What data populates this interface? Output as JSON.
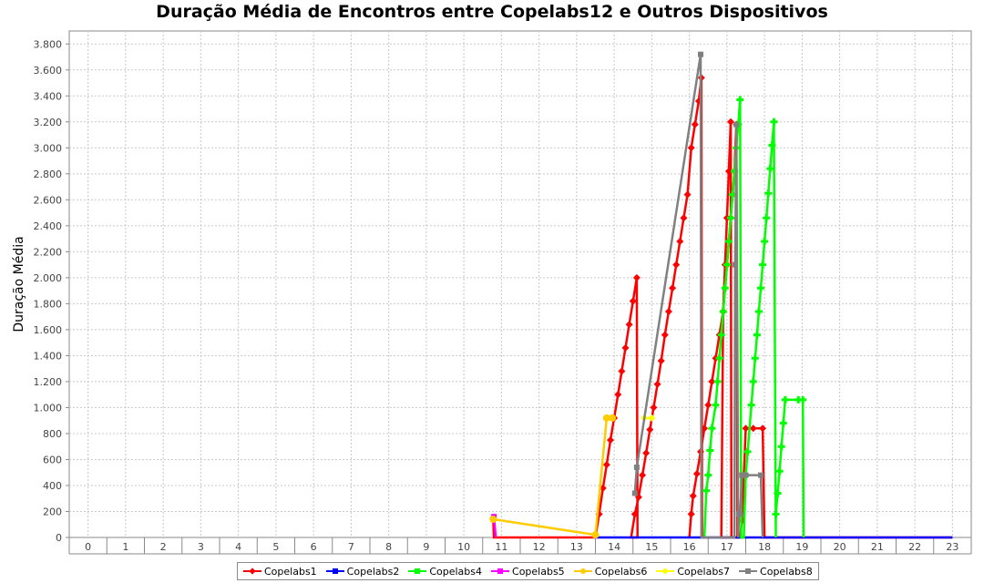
{
  "chart_data": {
    "type": "line",
    "title": "Duração Média de Encontros entre Copelabs12 e Outros Dispositivos",
    "ylabel": "Duração Média",
    "xlabel": "",
    "categories": [
      "0",
      "1",
      "2",
      "3",
      "4",
      "5",
      "6",
      "7",
      "8",
      "9",
      "10",
      "11",
      "12",
      "13",
      "14",
      "15",
      "16",
      "17",
      "18",
      "19",
      "20",
      "21",
      "22",
      "23"
    ],
    "ylim": [
      0,
      3900
    ],
    "yticks": [
      0,
      200,
      400,
      600,
      800,
      1000,
      1200,
      1400,
      1600,
      1800,
      2000,
      2200,
      2400,
      2600,
      2800,
      3000,
      3200,
      3400,
      3600,
      3800
    ],
    "ytick_labels": [
      "0",
      "200",
      "400",
      "600",
      "800",
      "1.000",
      "1.200",
      "1.400",
      "1.600",
      "1.800",
      "2.000",
      "2.200",
      "2.400",
      "2.600",
      "2.800",
      "3.000",
      "3.200",
      "3.400",
      "3.600",
      "3.800"
    ],
    "grid": true,
    "legend_position": "bottom",
    "series": [
      {
        "name": "Copelabs1",
        "color": "#ff0000",
        "marker": "diamond",
        "points": [
          [
            11.28,
            150
          ],
          [
            11.3,
            0
          ],
          [
            14.0,
            0
          ],
          [
            14.1,
            180
          ],
          [
            14.2,
            380
          ],
          [
            14.3,
            560
          ],
          [
            14.4,
            750
          ],
          [
            14.5,
            920
          ],
          [
            14.6,
            1100
          ],
          [
            14.7,
            1280
          ],
          [
            14.8,
            1460
          ],
          [
            14.9,
            1640
          ],
          [
            15.0,
            1820
          ],
          [
            15.1,
            2000
          ],
          [
            15.12,
            0
          ],
          [
            14.95,
            0
          ],
          [
            15.05,
            180
          ],
          [
            15.15,
            310
          ],
          [
            15.25,
            480
          ],
          [
            15.35,
            650
          ],
          [
            15.45,
            830
          ],
          [
            15.55,
            1000
          ],
          [
            15.65,
            1180
          ],
          [
            15.75,
            1360
          ],
          [
            15.85,
            1560
          ],
          [
            15.95,
            1740
          ],
          [
            16.05,
            1920
          ],
          [
            16.15,
            2100
          ],
          [
            16.25,
            2280
          ],
          [
            16.35,
            2460
          ],
          [
            16.45,
            2640
          ],
          [
            16.55,
            3000
          ],
          [
            16.65,
            3180
          ],
          [
            16.75,
            3360
          ],
          [
            16.82,
            3540
          ],
          [
            16.84,
            0
          ]
        ]
      },
      {
        "name": "Copelabs1",
        "color": "#ff0000",
        "marker": "diamond",
        "points": [
          [
            16.5,
            0
          ],
          [
            16.55,
            180
          ],
          [
            16.6,
            320
          ],
          [
            16.7,
            490
          ],
          [
            16.8,
            660
          ],
          [
            16.9,
            840
          ],
          [
            17.0,
            1020
          ],
          [
            17.1,
            1200
          ],
          [
            17.2,
            1380
          ],
          [
            17.3,
            1560
          ],
          [
            17.4,
            1740
          ],
          [
            17.5,
            2100
          ],
          [
            17.6,
            2460
          ],
          [
            17.65,
            2640
          ],
          [
            17.7,
            2820
          ],
          [
            17.75,
            3180
          ],
          [
            17.78,
            0
          ],
          [
            17.35,
            0
          ],
          [
            17.4,
            1740
          ],
          [
            17.45,
            2100
          ],
          [
            17.5,
            2460
          ],
          [
            17.55,
            2820
          ],
          [
            17.6,
            3200
          ],
          [
            17.62,
            0
          ],
          [
            17.85,
            0
          ],
          [
            17.9,
            130
          ],
          [
            17.95,
            480
          ],
          [
            18.0,
            840
          ],
          [
            18.2,
            840
          ],
          [
            18.45,
            840
          ],
          [
            18.5,
            0
          ],
          [
            23.5,
            0
          ]
        ]
      },
      {
        "name": "Copelabs2",
        "color": "#0000ff",
        "marker": "triangle-up",
        "points": [
          [
            14.0,
            0
          ],
          [
            23.5,
            0
          ]
        ]
      },
      {
        "name": "Copelabs4",
        "color": "#00ff00",
        "marker": "plus",
        "points": [
          [
            16.9,
            0
          ],
          [
            16.95,
            360
          ],
          [
            17.0,
            480
          ],
          [
            17.05,
            670
          ],
          [
            17.1,
            840
          ],
          [
            17.2,
            1020
          ],
          [
            17.25,
            1200
          ],
          [
            17.3,
            1380
          ],
          [
            17.35,
            1560
          ],
          [
            17.4,
            1740
          ],
          [
            17.45,
            1920
          ],
          [
            17.5,
            2100
          ],
          [
            17.55,
            2280
          ],
          [
            17.6,
            2460
          ],
          [
            17.65,
            2640
          ],
          [
            17.7,
            2820
          ],
          [
            17.75,
            3000
          ],
          [
            17.8,
            3180
          ],
          [
            17.85,
            3370
          ],
          [
            17.88,
            0
          ],
          [
            17.95,
            0
          ],
          [
            18.0,
            480
          ],
          [
            18.05,
            660
          ],
          [
            18.15,
            1020
          ],
          [
            18.2,
            1200
          ],
          [
            18.25,
            1380
          ],
          [
            18.3,
            1560
          ],
          [
            18.35,
            1740
          ],
          [
            18.4,
            1920
          ],
          [
            18.45,
            2100
          ],
          [
            18.5,
            2280
          ],
          [
            18.55,
            2460
          ],
          [
            18.6,
            2650
          ],
          [
            18.65,
            2840
          ],
          [
            18.7,
            3020
          ],
          [
            18.75,
            3200
          ],
          [
            18.8,
            0
          ],
          [
            18.8,
            180
          ],
          [
            18.85,
            340
          ],
          [
            18.9,
            510
          ],
          [
            18.95,
            700
          ],
          [
            19.0,
            880
          ],
          [
            19.05,
            1060
          ],
          [
            19.4,
            1060
          ],
          [
            19.52,
            1060
          ],
          [
            19.54,
            0
          ]
        ]
      },
      {
        "name": "Copelabs5",
        "color": "#ff00ff",
        "marker": "square",
        "points": [
          [
            11.3,
            160
          ],
          [
            11.35,
            0
          ]
        ]
      },
      {
        "name": "Copelabs6",
        "color": "#ffcc00",
        "marker": "circle",
        "points": [
          [
            11.28,
            140
          ],
          [
            14.0,
            20
          ],
          [
            14.3,
            920
          ],
          [
            14.45,
            920
          ]
        ]
      },
      {
        "name": "Copelabs7",
        "color": "#ffff00",
        "marker": "diamond",
        "points": [
          [
            15.3,
            920
          ],
          [
            15.5,
            920
          ]
        ]
      },
      {
        "name": "Copelabs8",
        "color": "#808080",
        "marker": "square",
        "points": [
          [
            15.05,
            340
          ],
          [
            15.1,
            540
          ],
          [
            16.8,
            3720
          ],
          [
            16.82,
            0
          ],
          [
            17.7,
            0
          ],
          [
            17.72,
            2100
          ],
          [
            17.75,
            3180
          ],
          [
            17.8,
            0
          ],
          [
            17.82,
            180
          ],
          [
            17.85,
            180
          ],
          [
            17.9,
            480
          ],
          [
            18.0,
            480
          ],
          [
            18.4,
            480
          ],
          [
            18.45,
            0
          ]
        ]
      }
    ]
  }
}
